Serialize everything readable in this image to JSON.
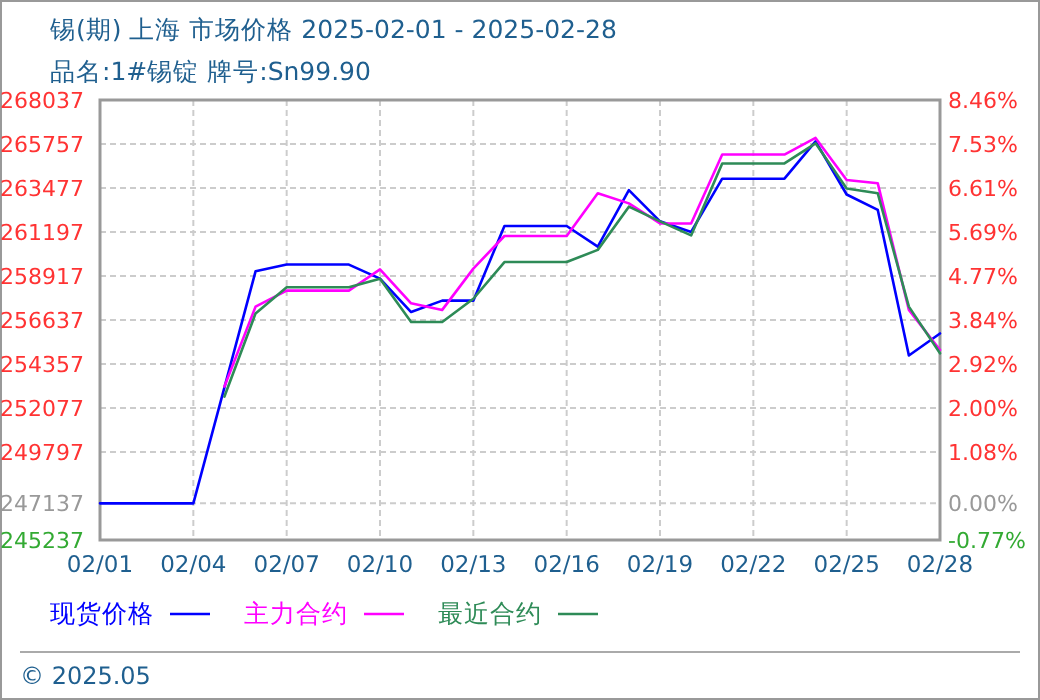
{
  "chart_data": {
    "type": "line",
    "title": "锡(期) 上海 市场价格 2025-02-01 - 2025-02-28",
    "subtitle": "品名:1#锡锭 牌号:Sn99.90",
    "xlim": [
      "2025-02-01",
      "2025-02-28"
    ],
    "xticks": [
      {
        "value": "2025-02-01",
        "label": "02/01"
      },
      {
        "value": "2025-02-04",
        "label": "02/04"
      },
      {
        "value": "2025-02-07",
        "label": "02/07"
      },
      {
        "value": "2025-02-10",
        "label": "02/10"
      },
      {
        "value": "2025-02-13",
        "label": "02/13"
      },
      {
        "value": "2025-02-16",
        "label": "02/16"
      },
      {
        "value": "2025-02-19",
        "label": "02/19"
      },
      {
        "value": "2025-02-22",
        "label": "02/22"
      },
      {
        "value": "2025-02-25",
        "label": "02/25"
      },
      {
        "value": "2025-02-28",
        "label": "02/28"
      }
    ],
    "ylim": [
      245237,
      268037
    ],
    "yticks": [
      268037,
      265757,
      263477,
      261197,
      258917,
      256637,
      254357,
      252077,
      249797,
      247137,
      245237
    ],
    "y2lim": [
      -0.77,
      8.46
    ],
    "y2ticks": [
      {
        "value": 8.46,
        "label": "8.46%"
      },
      {
        "value": 7.53,
        "label": "7.53%"
      },
      {
        "value": 6.61,
        "label": "6.61%"
      },
      {
        "value": 5.69,
        "label": "5.69%"
      },
      {
        "value": 4.77,
        "label": "4.77%"
      },
      {
        "value": 3.84,
        "label": "3.84%"
      },
      {
        "value": 2.92,
        "label": "2.92%"
      },
      {
        "value": 2.0,
        "label": "2.00%"
      },
      {
        "value": 1.08,
        "label": "1.08%"
      },
      {
        "value": 0,
        "label": "0.00%"
      },
      {
        "value": -0.77,
        "label": "-0.77%"
      }
    ],
    "grid": true,
    "legend": "bottom",
    "series": [
      {
        "name": "现货价格",
        "color": "#0000ff",
        "x": [
          "2025-02-01",
          "2025-02-04",
          "2025-02-06",
          "2025-02-07",
          "2025-02-09",
          "2025-02-10",
          "2025-02-11",
          "2025-02-12",
          "2025-02-13",
          "2025-02-14",
          "2025-02-16",
          "2025-02-17",
          "2025-02-18",
          "2025-02-19",
          "2025-02-20",
          "2025-02-21",
          "2025-02-23",
          "2025-02-24",
          "2025-02-25",
          "2025-02-26",
          "2025-02-27",
          "2025-02-28"
        ],
        "values": [
          247137,
          247137,
          259160,
          259510,
          259510,
          258780,
          257050,
          257640,
          257640,
          261510,
          261510,
          260440,
          263370,
          261750,
          261200,
          263960,
          263960,
          265890,
          263140,
          262340,
          254800,
          255940
        ]
      },
      {
        "name": "主力合约",
        "color": "#ff00ff",
        "x": [
          "2025-02-05",
          "2025-02-06",
          "2025-02-07",
          "2025-02-09",
          "2025-02-10",
          "2025-02-11",
          "2025-02-12",
          "2025-02-13",
          "2025-02-14",
          "2025-02-16",
          "2025-02-17",
          "2025-02-18",
          "2025-02-19",
          "2025-02-20",
          "2025-02-21",
          "2025-02-23",
          "2025-02-24",
          "2025-02-25",
          "2025-02-26",
          "2025-02-27",
          "2025-02-28"
        ],
        "values": [
          253190,
          257330,
          258160,
          258160,
          259260,
          257500,
          257160,
          259300,
          260990,
          260990,
          263200,
          262680,
          261640,
          261640,
          265210,
          265210,
          266070,
          263890,
          263720,
          257160,
          255080
        ]
      },
      {
        "name": "最近合约",
        "color": "#2e8b57",
        "x": [
          "2025-02-05",
          "2025-02-06",
          "2025-02-07",
          "2025-02-09",
          "2025-02-10",
          "2025-02-11",
          "2025-02-12",
          "2025-02-13",
          "2025-02-14",
          "2025-02-16",
          "2025-02-17",
          "2025-02-18",
          "2025-02-19",
          "2025-02-20",
          "2025-02-21",
          "2025-02-23",
          "2025-02-24",
          "2025-02-25",
          "2025-02-26",
          "2025-02-27",
          "2025-02-28"
        ],
        "values": [
          252670,
          256980,
          258330,
          258330,
          258780,
          256530,
          256530,
          257740,
          259640,
          259640,
          260270,
          262510,
          261750,
          261020,
          264750,
          264750,
          265790,
          263450,
          263200,
          257330,
          254910
        ]
      }
    ],
    "annotations": [
      "© 2025.05"
    ]
  }
}
